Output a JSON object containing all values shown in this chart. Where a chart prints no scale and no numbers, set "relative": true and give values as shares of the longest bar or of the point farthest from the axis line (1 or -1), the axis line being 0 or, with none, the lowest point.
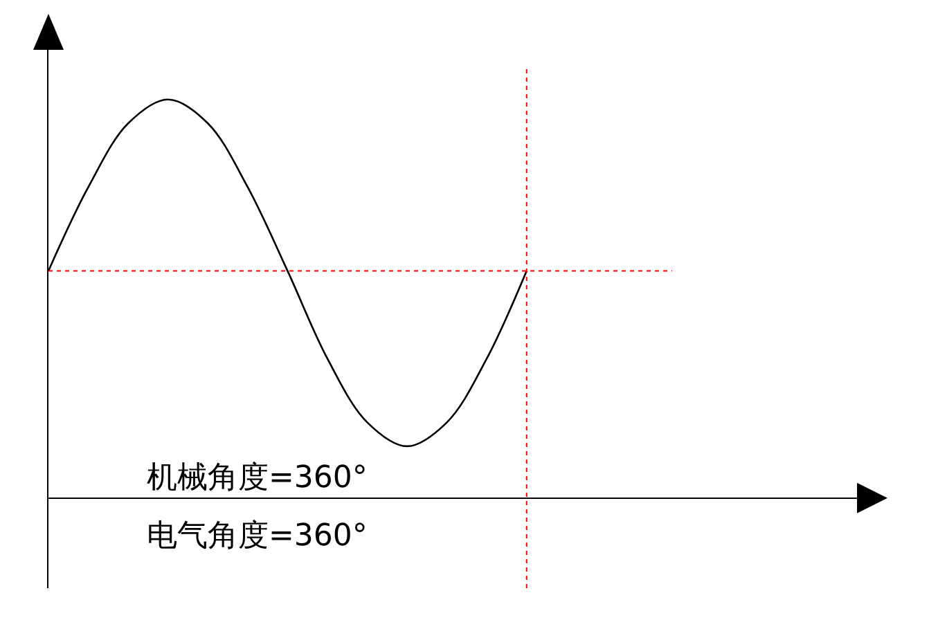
{
  "chart_data": {
    "type": "line",
    "relative": true,
    "grid": false,
    "marker": "none",
    "line_style": "solid",
    "categories": [
      null,
      null,
      null,
      null,
      null,
      null,
      null,
      null,
      null,
      null,
      null,
      null,
      null,
      null,
      null,
      null,
      null,
      null,
      null,
      null,
      null
    ],
    "series": [
      {
        "color": "#000000",
        "values": [
          0.57,
          0.78,
          0.94,
          1,
          0.94,
          0.78,
          0.57,
          0.35,
          0.19,
          0.13,
          0.19,
          0.35,
          0.57,
          null,
          null,
          null,
          null,
          null,
          null,
          null,
          null
        ]
      }
    ],
    "ref_lines": [
      {
        "axis": "y",
        "value": 0.57,
        "color": "#ff0000",
        "line_style": "dotted"
      }
    ],
    "annotations": [
      "机械角度=360°",
      "电气角度=360°"
    ]
  }
}
